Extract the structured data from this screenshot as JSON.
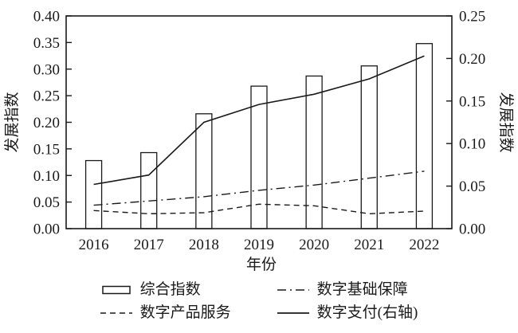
{
  "figure": {
    "background": "#ffffff",
    "ink_color": "#1a1a1a"
  },
  "chart_data": {
    "type": "bar+line combo with dual y-axes",
    "categories": [
      "2016",
      "2017",
      "2018",
      "2019",
      "2020",
      "2021",
      "2022"
    ],
    "xlabel": "年份",
    "left_axis": {
      "label": "发展指数",
      "min": 0.0,
      "max": 0.4,
      "step": 0.05
    },
    "right_axis": {
      "label": "发展指数",
      "min": 0.0,
      "max": 0.25,
      "step": 0.05
    },
    "grid": false,
    "series": [
      {
        "id": "composite-index",
        "name": "综合指数",
        "kind": "bar",
        "axis": "left",
        "values": [
          0.128,
          0.143,
          0.216,
          0.268,
          0.287,
          0.306,
          0.348
        ]
      },
      {
        "id": "digital-product-services",
        "name": "数字产品服务",
        "kind": "line",
        "dash": "dashed",
        "axis": "left",
        "values": [
          0.034,
          0.028,
          0.03,
          0.046,
          0.043,
          0.028,
          0.033
        ]
      },
      {
        "id": "digital-infrastructure",
        "name": "数字基础保障",
        "kind": "line",
        "dash": "dashdot",
        "axis": "left",
        "values": [
          0.044,
          0.052,
          0.06,
          0.072,
          0.082,
          0.095,
          0.108
        ]
      },
      {
        "id": "digital-payment",
        "name": "数字支付(右轴)",
        "kind": "line",
        "dash": "solid",
        "axis": "right",
        "values": [
          0.052,
          0.063,
          0.125,
          0.146,
          0.158,
          0.176,
          0.203
        ]
      }
    ],
    "legend": {
      "position": "bottom",
      "columns": 2,
      "items": [
        {
          "series": "composite-index",
          "label": "综合指数",
          "swatch": "bar"
        },
        {
          "series": "digital-product-services",
          "label": "数字产品服务",
          "swatch": "dashed"
        },
        {
          "series": "digital-infrastructure",
          "label": "数字基础保障",
          "swatch": "dashdot"
        },
        {
          "series": "digital-payment",
          "label": "数字支付(右轴)",
          "swatch": "solid"
        }
      ]
    }
  }
}
